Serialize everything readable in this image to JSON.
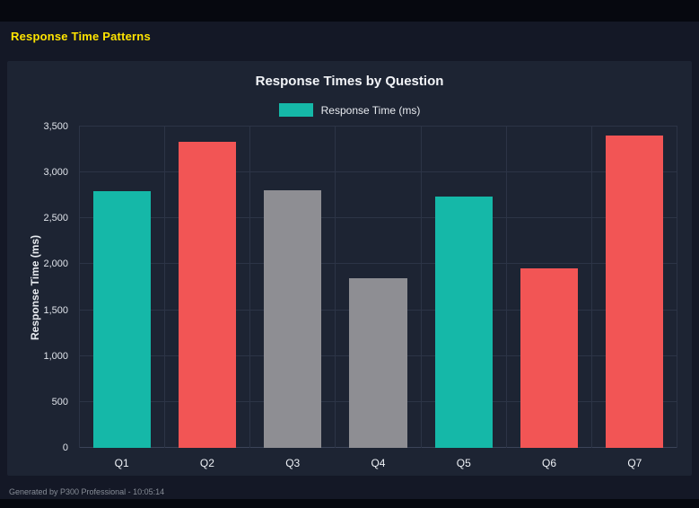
{
  "page": {
    "header_title": "Response Time Patterns",
    "footer_note": "Generated by P300 Professional - 10:05:14"
  },
  "chart": {
    "title": "Response Times by Question",
    "legend_label": "Response Time (ms)",
    "y_axis_label": "Response Time (ms)"
  },
  "colors": {
    "page_background": "#141826",
    "panel_background": "#1d2433",
    "header_accent": "#ffe400",
    "teal": "#15b8a8",
    "red": "#f25555",
    "gray": "#8e8e93",
    "gridline": "#2c3446"
  },
  "chart_data": {
    "type": "bar",
    "title": "Response Times by Question",
    "categories": [
      "Q1",
      "Q2",
      "Q3",
      "Q4",
      "Q5",
      "Q6",
      "Q7"
    ],
    "values": [
      2800,
      3330,
      2810,
      1850,
      2740,
      1960,
      3400
    ],
    "bar_colors": [
      "#15b8a8",
      "#f25555",
      "#8e8e93",
      "#8e8e93",
      "#15b8a8",
      "#f25555",
      "#f25555"
    ],
    "xlabel": "",
    "ylabel": "Response Time (ms)",
    "ylim": [
      0,
      3500
    ],
    "yticks": [
      "0",
      "500",
      "1,000",
      "1,500",
      "2,000",
      "2,500",
      "3,000",
      "3,500"
    ],
    "grid": true,
    "legend_position": "top",
    "legend": [
      {
        "label": "Response Time (ms)",
        "color": "#15b8a8"
      }
    ]
  }
}
